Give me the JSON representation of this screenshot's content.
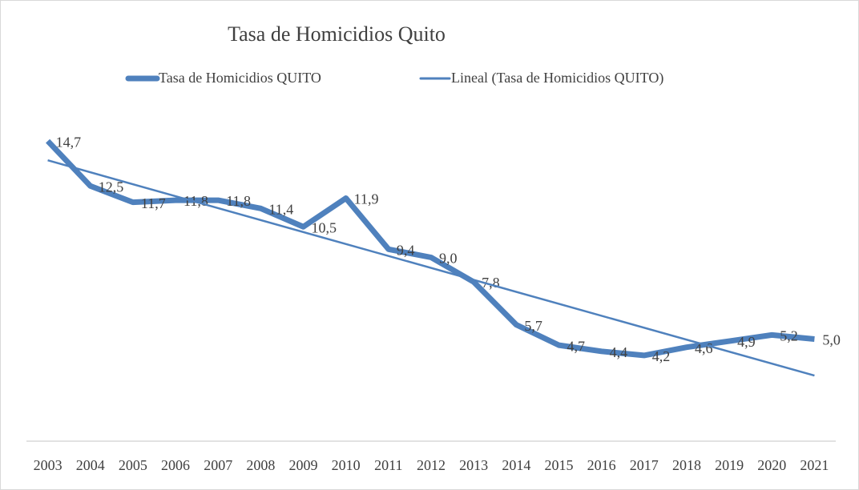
{
  "chart_data": {
    "type": "line",
    "title": "Tasa de Homicidios Quito",
    "categories": [
      "2003",
      "2004",
      "2005",
      "2006",
      "2007",
      "2008",
      "2009",
      "2010",
      "2011",
      "2012",
      "2013",
      "2014",
      "2015",
      "2016",
      "2017",
      "2018",
      "2019",
      "2020",
      "2021"
    ],
    "series": [
      {
        "name": "Tasa de Homicidios QUITO",
        "color": "#4f81bd",
        "values": [
          14.7,
          12.5,
          11.7,
          11.8,
          11.8,
          11.4,
          10.5,
          11.9,
          9.4,
          9.0,
          7.8,
          5.7,
          4.7,
          4.4,
          4.2,
          4.6,
          4.9,
          5.2,
          5.0
        ],
        "value_labels": [
          "14,7",
          "12,5",
          "11,7",
          "11,8",
          "11,8",
          "11,4",
          "10,5",
          "11,9",
          "9,4",
          "9,0",
          "7,8",
          "5,7",
          "4,7",
          "4,4",
          "4,2",
          "4,6",
          "4,9",
          "5,2",
          "5,0"
        ]
      },
      {
        "name": "Lineal (Tasa de Homicidios QUITO)",
        "color": "#4f81bd",
        "trend": "linear"
      }
    ],
    "ylim": [
      0,
      16
    ],
    "legend": "top"
  }
}
